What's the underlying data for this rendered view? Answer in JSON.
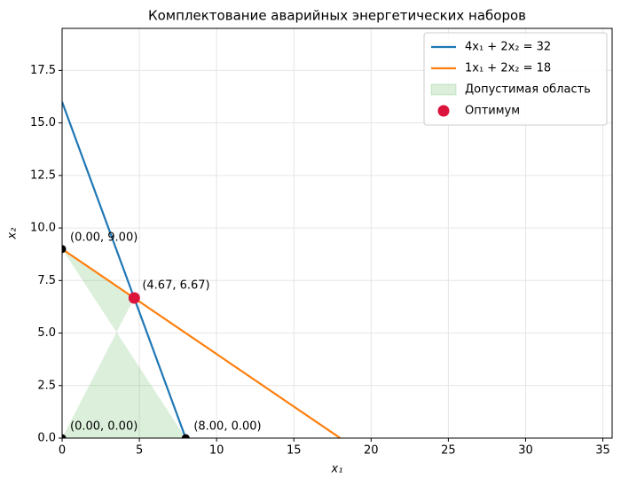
{
  "chart_data": {
    "type": "line",
    "title": "Комплектование аварийных энергетических наборов",
    "x_label": "x₁",
    "y_label": "x₂",
    "xlim": [
      0,
      35.6
    ],
    "ylim": [
      0,
      19.5
    ],
    "xticks": [
      0,
      5,
      10,
      15,
      20,
      25,
      30,
      35
    ],
    "yticks": [
      {
        "value": 0,
        "label": "0.0"
      },
      2.5,
      {
        "value": 5,
        "label": "5.0"
      },
      7.5,
      {
        "value": 10,
        "label": "10.0"
      },
      12.5,
      {
        "value": 15,
        "label": "15.0"
      },
      17.5
    ],
    "grid": true,
    "legend": "upper right",
    "series": [
      {
        "name": "4x₁ + 2x₂ = 32",
        "color": "#1f77b4",
        "x": [
          0,
          8
        ],
        "values": [
          16,
          0
        ]
      },
      {
        "name": "1x₁ + 2x₂ = 18",
        "color": "#ff7f0e",
        "x": [
          0,
          18
        ],
        "values": [
          9,
          0
        ]
      }
    ],
    "region": {
      "name": "Допустимая область",
      "color": "#2ca02c",
      "x": [
        0,
        4.67,
        0,
        8
      ],
      "values": [
        0,
        6.67,
        9,
        0
      ]
    },
    "points": {
      "color": "black",
      "x": [
        0,
        0,
        8
      ],
      "values": [
        0,
        9,
        0
      ],
      "value_labels": [
        "(0.00, 0.00)",
        "(0.00, 9.00)",
        "(8.00, 0.00)"
      ]
    },
    "optimum": {
      "name": "Оптимум",
      "color": "crimson",
      "x": [
        4.67
      ],
      "values": [
        6.67
      ],
      "value_labels": [
        "(4.67, 6.67)"
      ]
    }
  }
}
